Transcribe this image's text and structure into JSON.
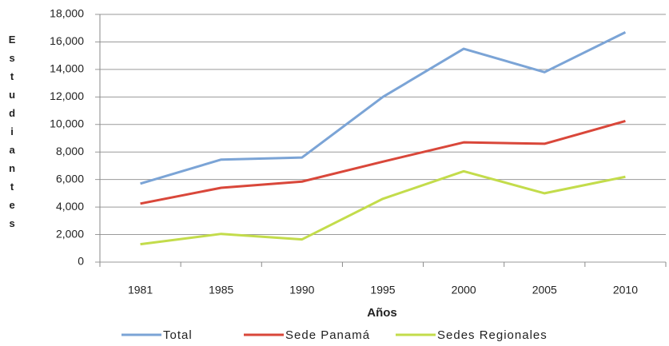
{
  "chart_data": {
    "type": "line",
    "x_label": "Años",
    "y_label": "Estudiantes",
    "categories": [
      "1981",
      "1985",
      "1990",
      "1995",
      "2000",
      "2005",
      "2010"
    ],
    "series": [
      {
        "name": "Total",
        "color": "#7ba4d6",
        "values": [
          5700,
          7450,
          7600,
          12000,
          15500,
          13800,
          16700
        ]
      },
      {
        "name": "Sede Panamá",
        "color": "#d9473a",
        "values": [
          4250,
          5400,
          5850,
          7300,
          8700,
          8600,
          10250
        ]
      },
      {
        "name": "Sedes Regionales",
        "color": "#c3dc4b",
        "values": [
          1300,
          2050,
          1650,
          4600,
          6600,
          5000,
          6200
        ]
      }
    ],
    "ylim": [
      0,
      18000
    ],
    "yticks": [
      0,
      {
        "value": 2000,
        "label": "2,000"
      },
      {
        "value": 4000,
        "label": "4,000"
      },
      {
        "value": 6000,
        "label": "6,000"
      },
      {
        "value": 8000,
        "label": "8,000"
      },
      {
        "value": 10000,
        "label": "10,000"
      },
      {
        "value": 12000,
        "label": "12,000"
      },
      {
        "value": 14000,
        "label": "14,000"
      },
      {
        "value": 16000,
        "label": "16,000"
      },
      {
        "value": 18000,
        "label": "18,000"
      }
    ],
    "grid": true
  }
}
